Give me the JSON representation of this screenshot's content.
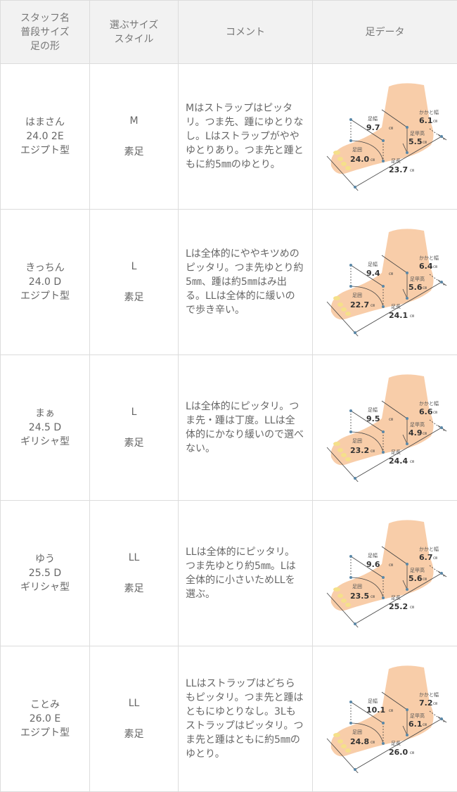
{
  "header": {
    "col1": [
      "スタッフ名",
      "普段サイズ",
      "足の形"
    ],
    "col2": [
      "選ぶサイズ",
      "スタイル"
    ],
    "col3": "コメント",
    "col4": "足データ"
  },
  "foot_labels": {
    "width": "足幅",
    "heel": "かかと幅",
    "instep": "足甲高",
    "girth": "足囲",
    "length": "足長",
    "unit": "㎝"
  },
  "rows": [
    {
      "name": "はまさん",
      "size": "24.0 2E",
      "shape": "エジプト型",
      "choice": "M",
      "style": "素足",
      "comment": "Mはストラップはピッタリ。つま先、踵にゆとりなし。Lはストラップがややゆとりあり。つま先と踵ともに約5㎜のゆとり。",
      "foot": {
        "width": "9.7",
        "heel": "6.1",
        "instep": "5.5",
        "girth": "24.0",
        "length": "23.7"
      }
    },
    {
      "name": "きっちん",
      "size": "24.0 D",
      "shape": "エジプト型",
      "choice": "L",
      "style": "素足",
      "comment": "Lは全体的にややキツめのピッタリ。つま先ゆとり約5㎜、踵は約5㎜はみ出る。LLは全体的に緩いので歩き辛い。",
      "foot": {
        "width": "9.4",
        "heel": "6.4",
        "instep": "5.6",
        "girth": "22.7",
        "length": "24.1"
      }
    },
    {
      "name": "まぁ",
      "size": "24.5 D",
      "shape": "ギリシャ型",
      "choice": "L",
      "style": "素足",
      "comment": "Lは全体的にピッタリ。つま先・踵は丁度。LLは全体的にかなり緩いので選べない。",
      "foot": {
        "width": "9.5",
        "heel": "6.6",
        "instep": "4.9",
        "girth": "23.2",
        "length": "24.4"
      }
    },
    {
      "name": "ゆう",
      "size": "25.5 D",
      "shape": "ギリシャ型",
      "choice": "LL",
      "style": "素足",
      "comment": "LLは全体的にピッタリ。つま先ゆとり約5㎜。Lは全体的に小さいためLLを選ぶ。",
      "foot": {
        "width": "9.6",
        "heel": "6.7",
        "instep": "5.6",
        "girth": "23.5",
        "length": "25.2"
      }
    },
    {
      "name": "ことみ",
      "size": "26.0 E",
      "shape": "エジプト型",
      "choice": "LL",
      "style": "素足",
      "comment": "LLはストラップはどちらもピッタリ。つま先と踵はともにゆとりなし。3Lもストラップはピッタリ。つま先と踵はともに約5㎜のゆとり。",
      "foot": {
        "width": "10.1",
        "heel": "7.2",
        "instep": "6.1",
        "girth": "24.8",
        "length": "26.0"
      }
    }
  ]
}
